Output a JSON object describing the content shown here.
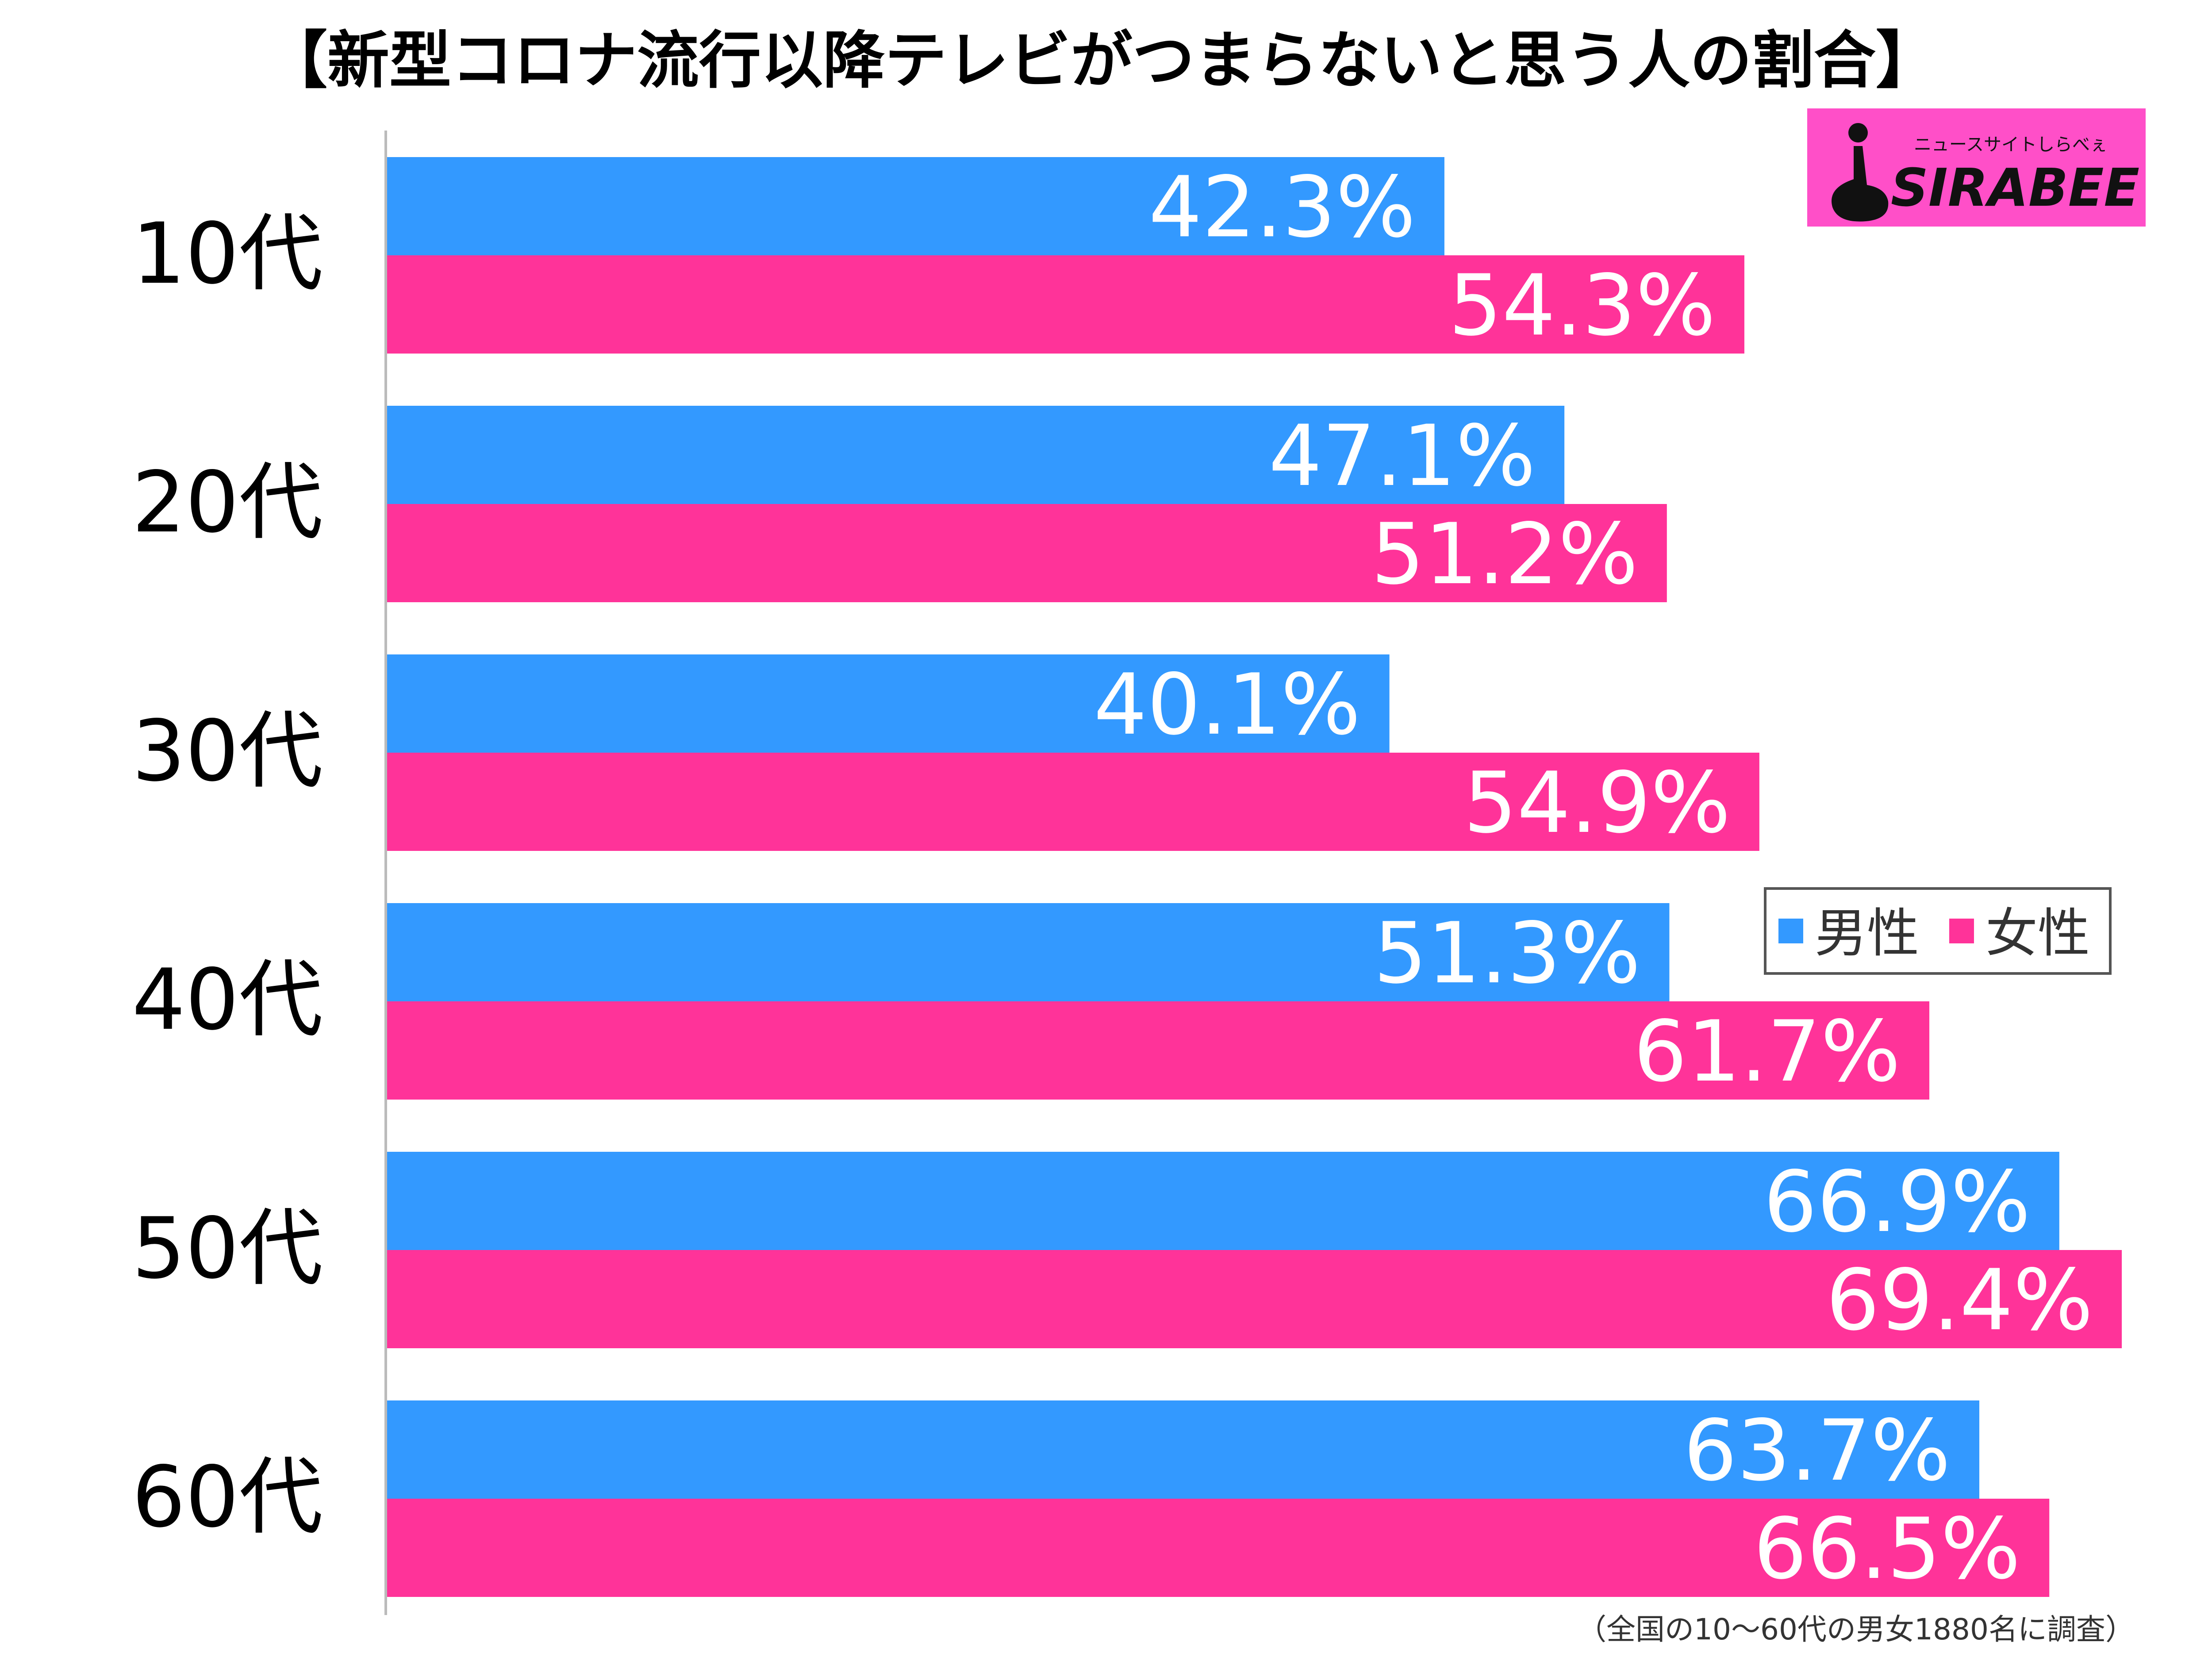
{
  "chart_data": {
    "type": "bar",
    "orientation": "horizontal",
    "title": "【新型コロナ流行以降テレビがつまらないと思う人の割合】",
    "categories": [
      "10代",
      "20代",
      "30代",
      "40代",
      "50代",
      "60代"
    ],
    "series": [
      {
        "name": "男性",
        "values": [
          42.3,
          47.1,
          40.1,
          51.3,
          66.9,
          63.7
        ],
        "color": "#3399ff"
      },
      {
        "name": "女性",
        "values": [
          54.3,
          51.2,
          54.9,
          61.7,
          69.4,
          66.5
        ],
        "color": "#ff3399"
      }
    ],
    "value_suffix": "%",
    "xlim": [
      0,
      70
    ],
    "grid": false,
    "legend_position": "right",
    "footnote": "（全国の10〜60代の男女1880名に調査）"
  },
  "logo": {
    "brand": "SIRABEE",
    "tagline": "ニュースサイトしらべぇ",
    "background": "#ff4fc8"
  }
}
